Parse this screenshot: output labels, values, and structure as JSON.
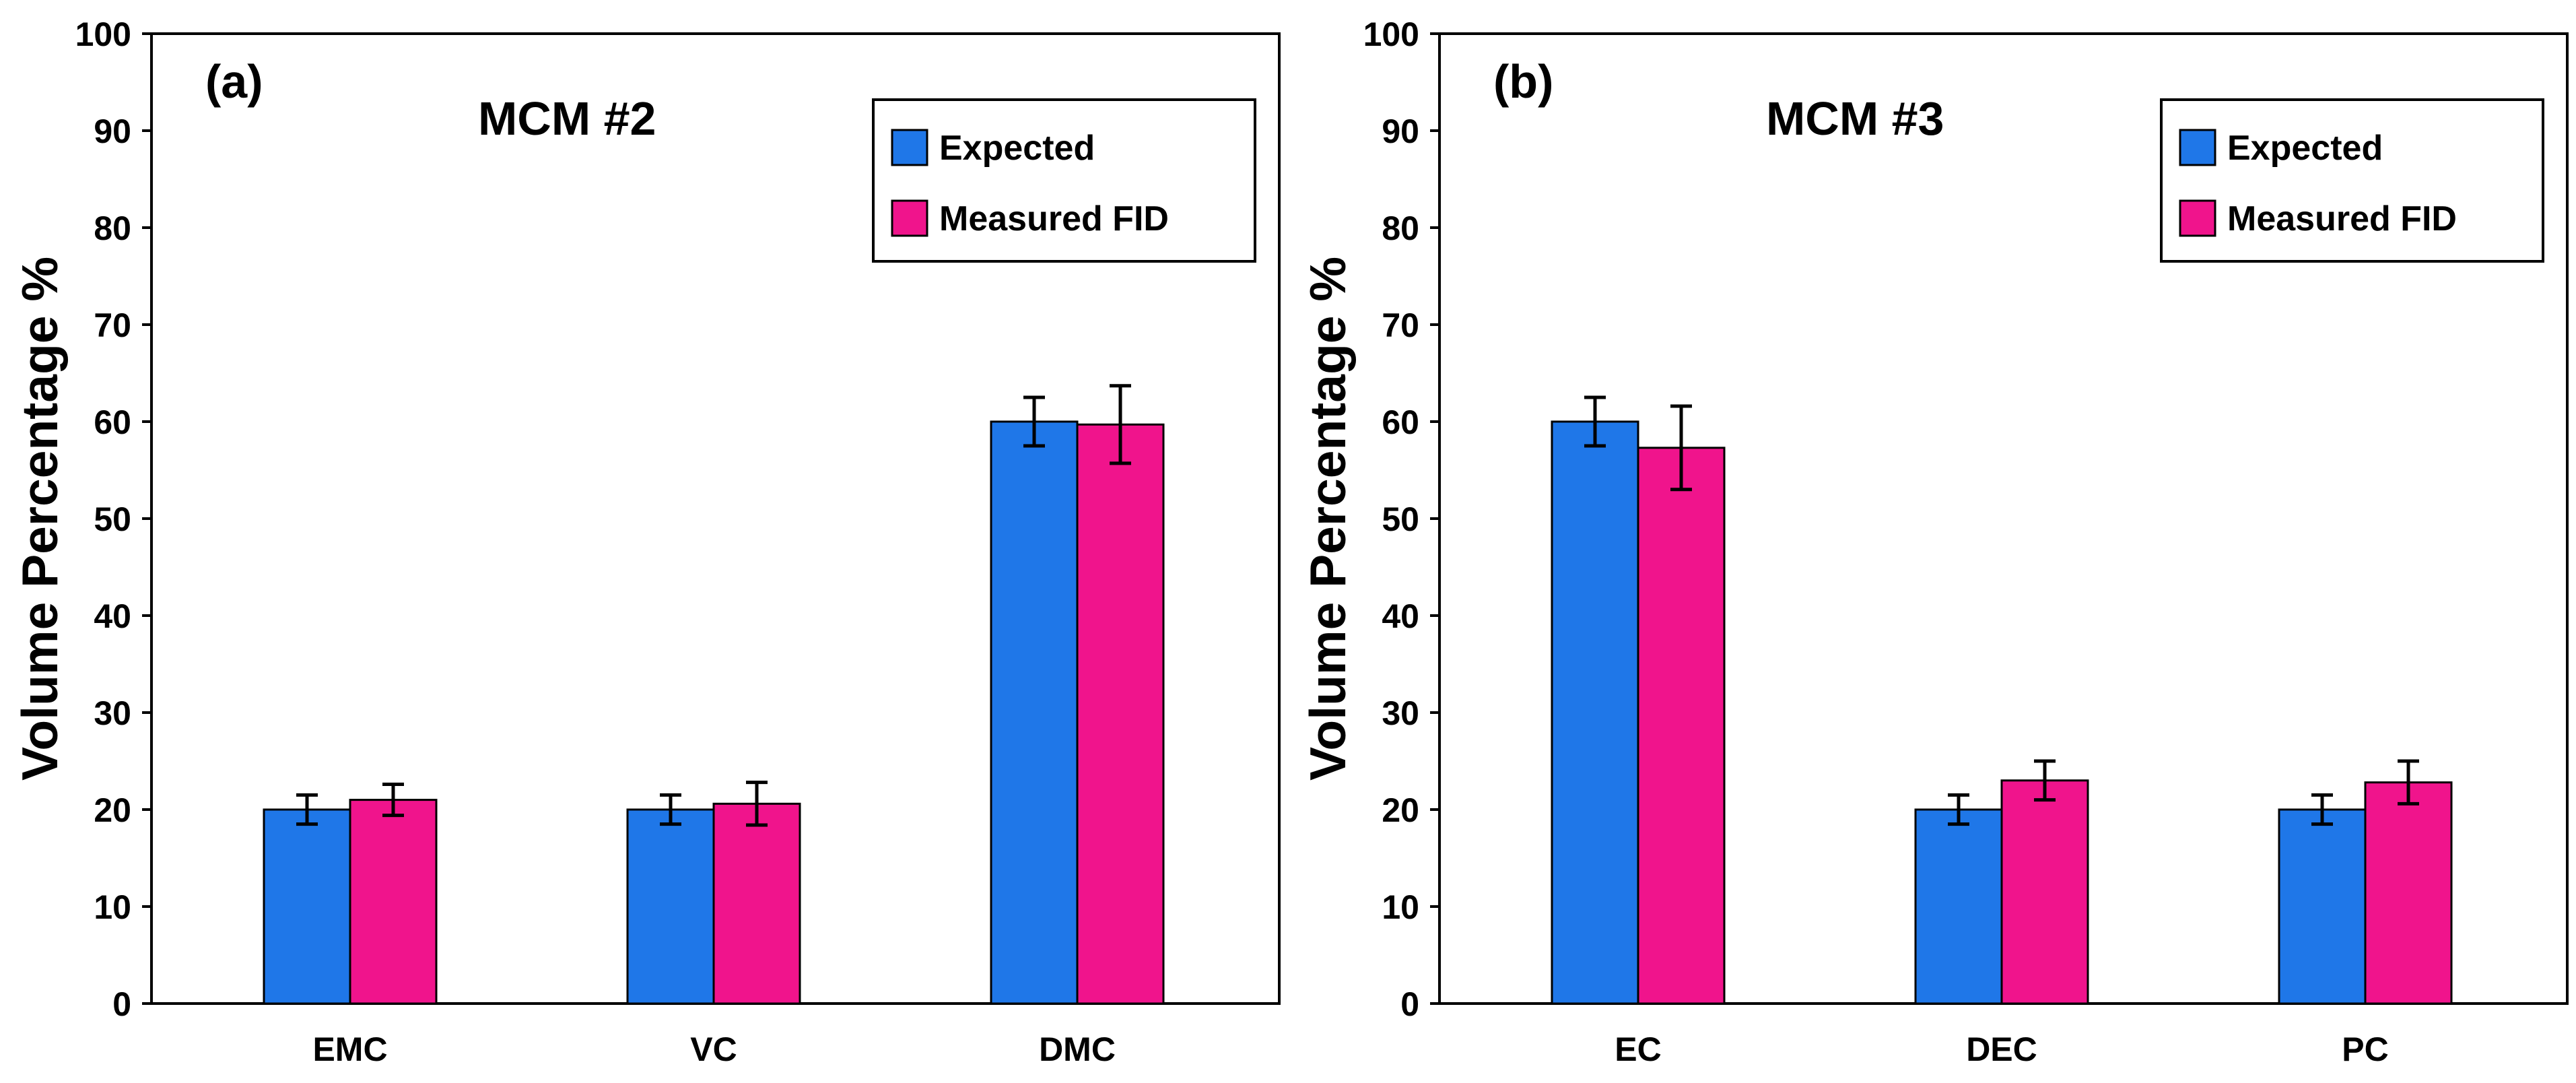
{
  "chart_data": [
    {
      "type": "bar",
      "panel_label": "(a)",
      "title": "MCM #2",
      "xlabel": "",
      "ylabel": "Volume Percentage %",
      "ylim": [
        0,
        100
      ],
      "yticks": [
        "0",
        "10",
        "20",
        "30",
        "40",
        "50",
        "60",
        "70",
        "80",
        "90",
        "100"
      ],
      "categories": [
        "EMC",
        "VC",
        "DMC"
      ],
      "legend_position": "top-right",
      "grid": false,
      "series": [
        {
          "name": "Expected",
          "color": "#1f77e8",
          "values": [
            20,
            20,
            60
          ],
          "errors": [
            1.5,
            1.5,
            2.5
          ]
        },
        {
          "name": "Measured FID",
          "color": "#f0148c",
          "values": [
            21,
            20.6,
            59.7
          ],
          "errors": [
            1.6,
            2.2,
            4.0
          ]
        }
      ]
    },
    {
      "type": "bar",
      "panel_label": "(b)",
      "title": "MCM #3",
      "xlabel": "",
      "ylabel": "Volume Percentage %",
      "ylim": [
        0,
        100
      ],
      "yticks": [
        "0",
        "10",
        "20",
        "30",
        "40",
        "50",
        "60",
        "70",
        "80",
        "90",
        "100"
      ],
      "categories": [
        "EC",
        "DEC",
        "PC"
      ],
      "legend_position": "top-right",
      "grid": false,
      "series": [
        {
          "name": "Expected",
          "color": "#1f77e8",
          "values": [
            60,
            20,
            20
          ],
          "errors": [
            2.5,
            1.5,
            1.5
          ]
        },
        {
          "name": "Measured FID",
          "color": "#f0148c",
          "values": [
            57.3,
            23,
            22.8
          ],
          "errors": [
            4.3,
            2.0,
            2.2
          ]
        }
      ]
    }
  ]
}
